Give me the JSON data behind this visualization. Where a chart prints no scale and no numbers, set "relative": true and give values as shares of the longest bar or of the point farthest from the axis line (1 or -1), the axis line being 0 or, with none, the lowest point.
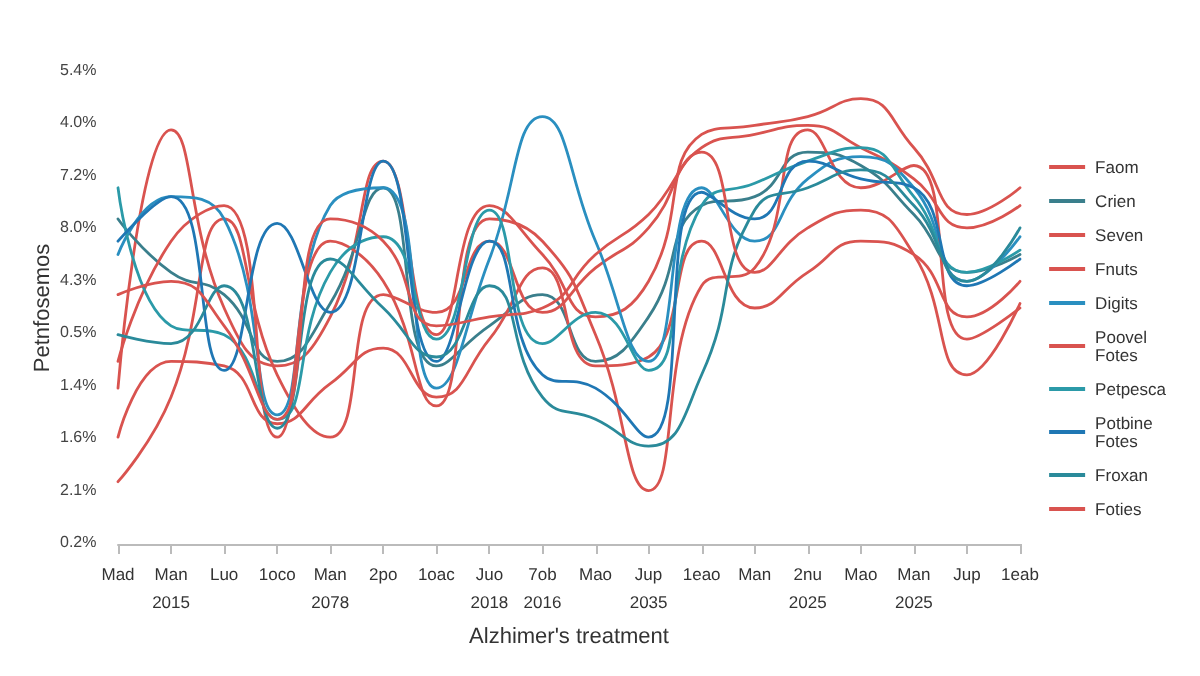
{
  "chart_data": {
    "type": "line",
    "xlabel": "Alzhimer's treatment",
    "ylabel": "Petnfosemos",
    "relative": true,
    "categories": [
      "Mad",
      "Man\n2015",
      "Luo",
      "1oco",
      "Man\n2078",
      "2po",
      "1oac",
      "Juo\n2018",
      "7ob\n2016",
      "Mao",
      "Jup\n2035",
      "1eao",
      "Man",
      "2nu\n2025",
      "Mao",
      "Man\n2025",
      "Jup",
      "1eab"
    ],
    "annotations": [
      "5.4%",
      "4.0%",
      "7.2%",
      "8.0%",
      "4.3%",
      "0.5%",
      "1.4%",
      "1.6%",
      "2.1%",
      "0.2%"
    ],
    "legend": "right",
    "marker": "none",
    "line_style": "solid",
    "series": [
      {
        "name": "Faom",
        "color": "#d9534f",
        "values": [
          0.35,
          0.93,
          0.53,
          0.4,
          0.51,
          0.86,
          0.47,
          0.76,
          0.65,
          0.51,
          0.59,
          0.92,
          0.94,
          0.96,
          1,
          0.89,
          0.74,
          0.8
        ]
      },
      {
        "name": "Crien",
        "color": "#3a7f8c",
        "values": [
          0.73,
          0.61,
          0.56,
          0.41,
          0.54,
          0.8,
          0.4,
          0.49,
          0.56,
          0.41,
          0.51,
          0.76,
          0.78,
          0.88,
          0.85,
          0.74,
          0.61,
          0.65
        ]
      },
      {
        "name": "Seven",
        "color": "#d9534f",
        "values": [
          0.14,
          0.33,
          0.73,
          0.38,
          0.24,
          0.56,
          0.52,
          0.68,
          0.52,
          0.62,
          0.71,
          0.89,
          0.92,
          0.94,
          0.89,
          0.82,
          0.71,
          0.76
        ]
      },
      {
        "name": "Fnuts",
        "color": "#d9534f",
        "values": [
          0.24,
          0.41,
          0.4,
          0.27,
          0.36,
          0.44,
          0.33,
          0.46,
          0.62,
          0.4,
          0.42,
          0.68,
          0.53,
          0.61,
          0.68,
          0.65,
          0.51,
          0.59
        ]
      },
      {
        "name": "Digits",
        "color": "#2a8fc0",
        "values": [
          0.65,
          0.78,
          0.73,
          0.29,
          0.76,
          0.8,
          0.35,
          0.64,
          0.96,
          0.68,
          0.41,
          0.8,
          0.68,
          0.82,
          0.87,
          0.8,
          0.59,
          0.69
        ]
      },
      {
        "name": "Poovel Fotes",
        "color": "#d9534f",
        "values": [
          0.41,
          0.68,
          0.76,
          0.24,
          0.68,
          0.59,
          0.31,
          0.73,
          0.68,
          0.47,
          0.12,
          0.58,
          0.62,
          0.93,
          0.8,
          0.85,
          0.46,
          0.53
        ]
      },
      {
        "name": "Petpesca",
        "color": "#2b9aa8",
        "values": [
          0.8,
          0.49,
          0.47,
          0.28,
          0.61,
          0.69,
          0.46,
          0.75,
          0.45,
          0.52,
          0.39,
          0.76,
          0.81,
          0.86,
          0.89,
          0.78,
          0.61,
          0.66
        ]
      },
      {
        "name": "Potbine Fotes",
        "color": "#1f77b4",
        "values": [
          0.68,
          0.78,
          0.39,
          0.72,
          0.52,
          0.86,
          0.41,
          0.68,
          0.38,
          0.35,
          0.24,
          0.79,
          0.73,
          0.86,
          0.82,
          0.8,
          0.58,
          0.64
        ]
      },
      {
        "name": "Froxan",
        "color": "#2a8a9a",
        "values": [
          0.47,
          0.45,
          0.58,
          0.26,
          0.64,
          0.53,
          0.42,
          0.58,
          0.33,
          0.28,
          0.22,
          0.38,
          0.75,
          0.8,
          0.84,
          0.76,
          0.59,
          0.71
        ]
      },
      {
        "name": "Foties",
        "color": "#d9534f",
        "values": [
          0.56,
          0.59,
          0.49,
          0.28,
          0.73,
          0.68,
          0.49,
          0.51,
          0.53,
          0.65,
          0.74,
          0.88,
          0.61,
          0.71,
          0.75,
          0.65,
          0.38,
          0.54
        ]
      }
    ]
  }
}
